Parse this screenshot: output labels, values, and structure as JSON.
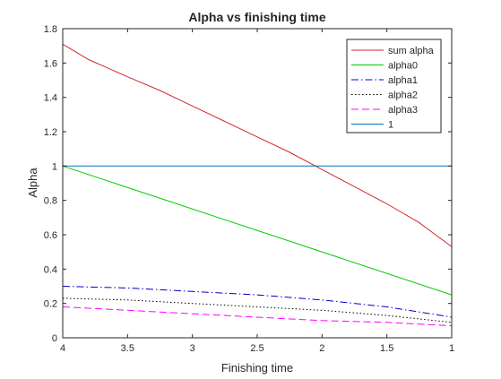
{
  "chart_data": {
    "type": "line",
    "title": "Alpha vs finishing time",
    "xlabel": "Finishing time",
    "ylabel": "Alpha",
    "xlim": [
      4,
      1
    ],
    "ylim": [
      0,
      1.8
    ],
    "x_reversed": true,
    "grid": false,
    "legend_position": "top-right",
    "xticks": [
      4,
      3.5,
      3,
      2.5,
      2,
      1.5,
      1
    ],
    "xtick_labels": [
      "4",
      "3.5",
      "3",
      "2.5",
      "2",
      "1.5",
      "1"
    ],
    "yticks": [
      0,
      0.2,
      0.4,
      0.6,
      0.8,
      1,
      1.2,
      1.4,
      1.6,
      1.8
    ],
    "ytick_labels": [
      "0",
      "0.2",
      "0.4",
      "0.6",
      "0.8",
      "1",
      "1.2",
      "1.4",
      "1.6",
      "1.8"
    ],
    "series": [
      {
        "name": "sum alpha",
        "color": "#d62728",
        "dash": "solid",
        "x": [
          4.0,
          3.8,
          3.5,
          3.25,
          3.0,
          2.75,
          2.5,
          2.25,
          2.0,
          1.75,
          1.5,
          1.25,
          1.0
        ],
        "y": [
          1.71,
          1.62,
          1.52,
          1.44,
          1.35,
          1.26,
          1.17,
          1.08,
          0.98,
          0.88,
          0.78,
          0.67,
          0.53
        ]
      },
      {
        "name": "alpha0",
        "color": "#00cc00",
        "dash": "solid",
        "x": [
          4.0,
          1.0
        ],
        "y": [
          1.0,
          0.25
        ]
      },
      {
        "name": "alpha1",
        "color": "#0000cc",
        "dash": "dashdot",
        "x": [
          4.0,
          3.5,
          3.0,
          2.5,
          2.0,
          1.5,
          1.0
        ],
        "y": [
          0.3,
          0.29,
          0.27,
          0.25,
          0.22,
          0.18,
          0.12
        ]
      },
      {
        "name": "alpha2",
        "color": "#000000",
        "dash": "dotted",
        "x": [
          4.0,
          3.5,
          3.0,
          2.5,
          2.0,
          1.5,
          1.0
        ],
        "y": [
          0.23,
          0.22,
          0.2,
          0.18,
          0.16,
          0.13,
          0.09
        ]
      },
      {
        "name": "alpha3",
        "color": "#ff00ff",
        "dash": "dashed",
        "x": [
          4.0,
          3.5,
          3.0,
          2.5,
          2.0,
          1.5,
          1.0
        ],
        "y": [
          0.18,
          0.16,
          0.14,
          0.12,
          0.1,
          0.09,
          0.07
        ]
      },
      {
        "name": "1",
        "color": "#0072bd",
        "dash": "solid",
        "x": [
          4.0,
          1.0
        ],
        "y": [
          1.0,
          1.0
        ]
      }
    ]
  }
}
